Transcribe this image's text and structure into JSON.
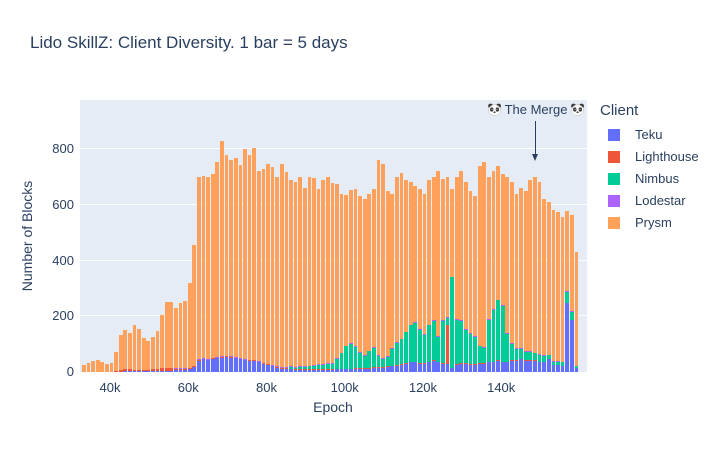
{
  "title": "Lido SkillZ: Client Diversity. 1 bar = 5 days",
  "annotation": {
    "text": "The Merge",
    "emoji": "🐼"
  },
  "legend": {
    "title": "Client",
    "items": [
      {
        "label": "Teku",
        "color": "#636EFA"
      },
      {
        "label": "Lighthouse",
        "color": "#EF553B"
      },
      {
        "label": "Nimbus",
        "color": "#00CC96"
      },
      {
        "label": "Lodestar",
        "color": "#AB63FA"
      },
      {
        "label": "Prysm",
        "color": "#FFA15A"
      }
    ]
  },
  "chart_data": {
    "type": "bar",
    "stacked": true,
    "title": "Lido SkillZ: Client Diversity. 1 bar = 5 days",
    "xlabel": "Epoch",
    "ylabel": "Number of Blocks",
    "bar_note": "1 bar = 5 days",
    "x_ticks": [
      "40k",
      "60k",
      "80k",
      "100k",
      "120k",
      "140k"
    ],
    "y_ticks": [
      0,
      200,
      400,
      600,
      800
    ],
    "ylim": [
      0,
      975
    ],
    "plot_bg": "#E5ECF6",
    "grid_color": "#ffffff",
    "epoch_start": 33000,
    "epoch_step": 1170,
    "series_order": [
      "Teku",
      "Lighthouse",
      "Nimbus",
      "Lodestar",
      "Prysm"
    ],
    "colors": {
      "Teku": "#636EFA",
      "Lighthouse": "#EF553B",
      "Nimbus": "#00CC96",
      "Lodestar": "#AB63FA",
      "Prysm": "#FFA15A"
    },
    "bars": [
      [
        0,
        0,
        0,
        0,
        25
      ],
      [
        0,
        0,
        0,
        0,
        33
      ],
      [
        0,
        0,
        0,
        0,
        39
      ],
      [
        0,
        0,
        0,
        0,
        42
      ],
      [
        0,
        0,
        0,
        0,
        37
      ],
      [
        0,
        0,
        0,
        0,
        30
      ],
      [
        0,
        0,
        0,
        0,
        33
      ],
      [
        0,
        4,
        0,
        0,
        69
      ],
      [
        0,
        8,
        0,
        0,
        125
      ],
      [
        2,
        10,
        0,
        0,
        138
      ],
      [
        2,
        8,
        0,
        0,
        131
      ],
      [
        2,
        6,
        0,
        0,
        160
      ],
      [
        3,
        5,
        0,
        0,
        145
      ],
      [
        3,
        6,
        0,
        0,
        112
      ],
      [
        3,
        5,
        0,
        0,
        104
      ],
      [
        3,
        7,
        0,
        0,
        117
      ],
      [
        4,
        8,
        0,
        0,
        136
      ],
      [
        4,
        9,
        0,
        0,
        191
      ],
      [
        5,
        10,
        0,
        0,
        235
      ],
      [
        5,
        8,
        0,
        2,
        237
      ],
      [
        6,
        6,
        0,
        2,
        216
      ],
      [
        6,
        5,
        0,
        2,
        235
      ],
      [
        8,
        4,
        0,
        2,
        241
      ],
      [
        10,
        3,
        0,
        2,
        305
      ],
      [
        18,
        3,
        0,
        2,
        432
      ],
      [
        40,
        3,
        0,
        2,
        655
      ],
      [
        45,
        2,
        0,
        2,
        656
      ],
      [
        42,
        2,
        0,
        2,
        652
      ],
      [
        48,
        2,
        0,
        2,
        658
      ],
      [
        50,
        2,
        0,
        2,
        701
      ],
      [
        52,
        2,
        0,
        2,
        772
      ],
      [
        55,
        2,
        0,
        2,
        721
      ],
      [
        52,
        2,
        0,
        2,
        704
      ],
      [
        50,
        2,
        0,
        2,
        714
      ],
      [
        45,
        2,
        0,
        2,
        693
      ],
      [
        42,
        2,
        0,
        2,
        754
      ],
      [
        40,
        2,
        0,
        2,
        736
      ],
      [
        40,
        2,
        0,
        2,
        761
      ],
      [
        35,
        2,
        0,
        2,
        683
      ],
      [
        30,
        2,
        0,
        2,
        696
      ],
      [
        25,
        2,
        0,
        3,
        715
      ],
      [
        20,
        2,
        0,
        3,
        710
      ],
      [
        15,
        2,
        0,
        3,
        680
      ],
      [
        12,
        2,
        0,
        3,
        728
      ],
      [
        12,
        2,
        0,
        3,
        701
      ],
      [
        10,
        2,
        5,
        3,
        670
      ],
      [
        8,
        2,
        6,
        3,
        661
      ],
      [
        8,
        2,
        8,
        3,
        679
      ],
      [
        8,
        2,
        8,
        3,
        639
      ],
      [
        8,
        2,
        10,
        3,
        677
      ],
      [
        8,
        2,
        12,
        3,
        670
      ],
      [
        8,
        2,
        15,
        3,
        627
      ],
      [
        8,
        2,
        15,
        3,
        662
      ],
      [
        8,
        2,
        18,
        3,
        669
      ],
      [
        8,
        2,
        20,
        3,
        647
      ],
      [
        10,
        2,
        35,
        3,
        626
      ],
      [
        10,
        2,
        55,
        3,
        570
      ],
      [
        10,
        2,
        80,
        3,
        540
      ],
      [
        10,
        2,
        90,
        3,
        548
      ],
      [
        12,
        2,
        75,
        3,
        563
      ],
      [
        12,
        2,
        55,
        3,
        558
      ],
      [
        12,
        2,
        45,
        3,
        560
      ],
      [
        12,
        2,
        60,
        3,
        563
      ],
      [
        15,
        2,
        70,
        3,
        565
      ],
      [
        15,
        2,
        40,
        3,
        700
      ],
      [
        15,
        2,
        30,
        3,
        695
      ],
      [
        18,
        2,
        35,
        3,
        592
      ],
      [
        20,
        2,
        60,
        3,
        555
      ],
      [
        22,
        2,
        80,
        3,
        593
      ],
      [
        25,
        2,
        90,
        3,
        595
      ],
      [
        30,
        2,
        110,
        3,
        545
      ],
      [
        35,
        2,
        130,
        3,
        510
      ],
      [
        35,
        2,
        140,
        3,
        488
      ],
      [
        30,
        2,
        120,
        3,
        500
      ],
      [
        30,
        2,
        100,
        3,
        505
      ],
      [
        35,
        2,
        130,
        3,
        520
      ],
      [
        40,
        2,
        140,
        3,
        515
      ],
      [
        35,
        2,
        90,
        3,
        590
      ],
      [
        30,
        2,
        150,
        3,
        506
      ],
      [
        30,
        140,
        25,
        3,
        502
      ],
      [
        15,
        0,
        325,
        2,
        316
      ],
      [
        25,
        2,
        160,
        3,
        510
      ],
      [
        30,
        2,
        150,
        3,
        535
      ],
      [
        30,
        2,
        120,
        3,
        525
      ],
      [
        25,
        2,
        110,
        3,
        510
      ],
      [
        25,
        2,
        100,
        3,
        500
      ],
      [
        30,
        2,
        60,
        3,
        645
      ],
      [
        30,
        2,
        55,
        3,
        665
      ],
      [
        35,
        2,
        150,
        3,
        510
      ],
      [
        35,
        2,
        185,
        3,
        498
      ],
      [
        40,
        2,
        215,
        3,
        480
      ],
      [
        35,
        2,
        200,
        3,
        470
      ],
      [
        35,
        2,
        100,
        3,
        560
      ],
      [
        40,
        2,
        60,
        3,
        575
      ],
      [
        40,
        2,
        40,
        3,
        555
      ],
      [
        45,
        2,
        35,
        3,
        575
      ],
      [
        40,
        2,
        30,
        3,
        575
      ],
      [
        40,
        2,
        30,
        3,
        615
      ],
      [
        40,
        2,
        25,
        3,
        630
      ],
      [
        35,
        2,
        25,
        3,
        615
      ],
      [
        35,
        2,
        20,
        3,
        560
      ],
      [
        45,
        0,
        15,
        2,
        549
      ],
      [
        25,
        0,
        12,
        2,
        542
      ],
      [
        25,
        0,
        12,
        2,
        536
      ],
      [
        20,
        0,
        15,
        2,
        521
      ],
      [
        248,
        0,
        40,
        2,
        287
      ],
      [
        187,
        0,
        30,
        2,
        344
      ],
      [
        15,
        0,
        6,
        2,
        409
      ]
    ]
  }
}
